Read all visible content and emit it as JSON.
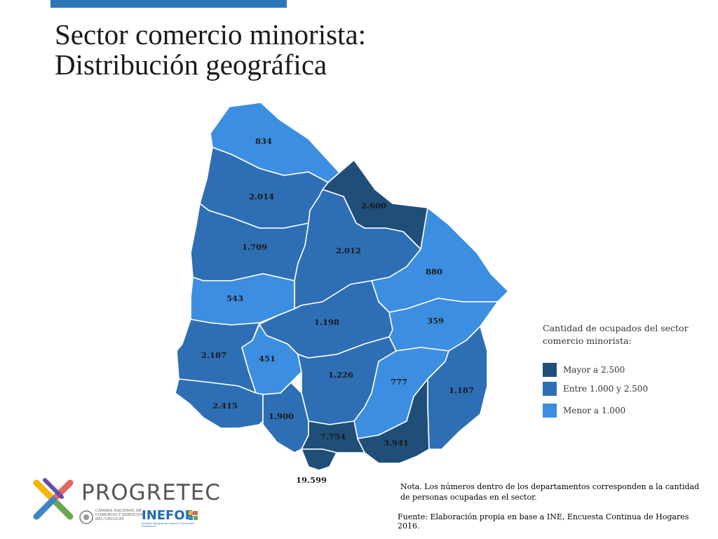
{
  "title_line1": "Sector comercio minorista:",
  "title_line2": "Distribución geográfica",
  "colors": {
    "accent_bar": "#2e75b6",
    "mayor": "#1f4e79",
    "entre": "#2e6eb5",
    "menor": "#3c8fe0"
  },
  "departments": [
    {
      "key": "artigas",
      "value": "834",
      "category": "menor"
    },
    {
      "key": "salto",
      "value": "2.014",
      "category": "entre"
    },
    {
      "key": "rivera",
      "value": "2.600",
      "category": "mayor"
    },
    {
      "key": "paysandu",
      "value": "1.709",
      "category": "entre"
    },
    {
      "key": "tacuarembo",
      "value": "2.012",
      "category": "entre"
    },
    {
      "key": "cerro_largo",
      "value": "880",
      "category": "menor"
    },
    {
      "key": "rio_negro",
      "value": "543",
      "category": "menor"
    },
    {
      "key": "durazno",
      "value": "1.198",
      "category": "entre"
    },
    {
      "key": "treinta_y_tres",
      "value": "359",
      "category": "menor"
    },
    {
      "key": "soriano",
      "value": "2.187",
      "category": "entre"
    },
    {
      "key": "flores",
      "value": "451",
      "category": "menor"
    },
    {
      "key": "florida",
      "value": "1.226",
      "category": "entre"
    },
    {
      "key": "lavalleja",
      "value": "777",
      "category": "menor"
    },
    {
      "key": "rocha",
      "value": "1.187",
      "category": "entre"
    },
    {
      "key": "colonia",
      "value": "2.415",
      "category": "entre"
    },
    {
      "key": "san_jose",
      "value": "1.900",
      "category": "entre"
    },
    {
      "key": "canelones",
      "value": "7.754",
      "category": "mayor"
    },
    {
      "key": "maldonado",
      "value": "3.941",
      "category": "mayor"
    },
    {
      "key": "montevideo",
      "value": "19.599",
      "category": "mayor"
    }
  ],
  "legend": {
    "title": "Cantidad de ocupados del sector comercio minorista:",
    "items": [
      {
        "label": "Mayor a 2.500",
        "category": "mayor"
      },
      {
        "label": "Entre 1.000 y 2.500",
        "category": "entre"
      },
      {
        "label": "Menor a 1.000",
        "category": "menor"
      }
    ]
  },
  "nota": "Nota. Los números dentro de los departamentos corresponden a la cantidad de personas ocupadas en el sector.",
  "fuente": "Fuente: Elaboración propia en base a INE, Encuesta Continua de Hogares 2016.",
  "logos": {
    "progretec": "PROGRETEC",
    "camara": "CÁMARA NACIONAL DE COMERCIO Y SERVICIOS DEL URUGUAY",
    "inefop": "INEFOP",
    "inefop_sub": "Instituto Nacional de Empleo y Formación Profesional"
  }
}
